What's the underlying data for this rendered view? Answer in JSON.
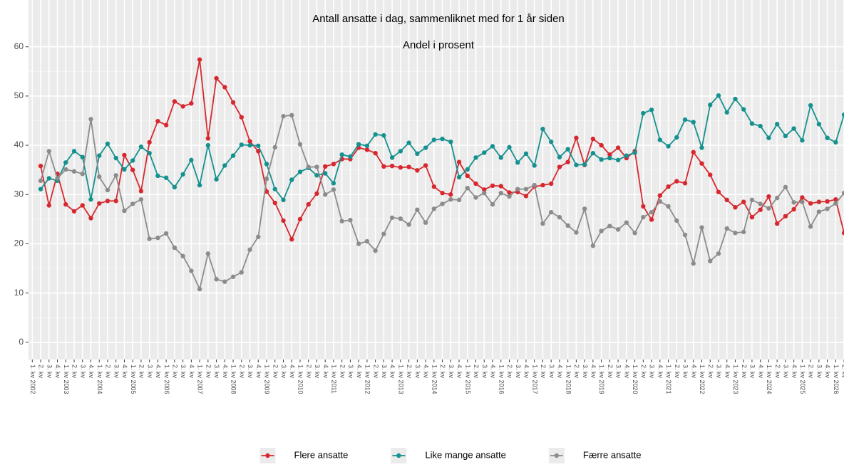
{
  "chart_data": {
    "type": "line",
    "title": "Antall ansatte i dag, sammenliknet med for 1 år siden",
    "subtitle": "Andel i prosent",
    "categories": [
      "1. kv 2002",
      "2. kv",
      "3. kv",
      "4. kv",
      "1. kv 2003",
      "2. kv",
      "3. kv",
      "4. kv",
      "1. kv 2004",
      "2. kv",
      "3. kv",
      "4. kv",
      "1. kv 2005",
      "2. kv",
      "3. kv",
      "4. kv",
      "1. kv 2006",
      "2. kv",
      "3. kv",
      "4. kv",
      "1. kv 2007",
      "2. kv",
      "3. kv",
      "4. kv",
      "1. kv 2008",
      "2. kv",
      "3. kv",
      "4. kv",
      "1. kv 2009",
      "2. kv",
      "3. kv",
      "4. kv",
      "1. kv 2010",
      "2. kv",
      "3. kv",
      "4. kv",
      "1. kv 2011",
      "2. kv",
      "3. kv",
      "4. kv",
      "1. kv 2012",
      "2. kv",
      "3. kv",
      "4. kv",
      "1. kv 2013",
      "2. kv",
      "3. kv",
      "4. kv",
      "1. kv 2014",
      "2. kv",
      "3. kv",
      "4. kv",
      "1. kv 2015",
      "2. kv",
      "3. kv",
      "4. kv",
      "1. kv 2016",
      "2. kv",
      "3. kv",
      "4. kv",
      "1. kv 2017",
      "2. kv",
      "3. kv",
      "4. kv",
      "1. kv 2018",
      "2. kv",
      "3. kv",
      "4. kv",
      "1. kv 2019",
      "2. kv",
      "3. kv",
      "4. kv",
      "1. kv 2020",
      "2. kv",
      "3. kv",
      "4. kv",
      "1. kv 2021",
      "2. kv",
      "3. kv",
      "4. kv",
      "1. kv 2022",
      "2. kv",
      "3. kv",
      "4. kv",
      "1. kv 2023",
      "2. kv",
      "3. kv",
      "4. kv",
      "1. kv 2024",
      "2. kv",
      "3. kv",
      "4. kv",
      "1. kv 2025",
      "2. kv",
      "3. kv",
      "4. kv",
      "1. kv 2026",
      "2. kv"
    ],
    "series": [
      {
        "name": "Flere ansatte",
        "color": "#d7282f",
        "values": [
          null,
          35.8,
          27.8,
          34.2,
          28,
          26.6,
          27.8,
          25.2,
          28.2,
          28.7,
          28.7,
          38,
          35,
          30.7,
          40.6,
          44.9,
          44.1,
          48.9,
          47.9,
          48.5,
          57.4,
          41.4,
          53.6,
          51.8,
          48.7,
          45.7,
          40.8,
          38.8,
          30.6,
          28.3,
          24.7,
          20.9,
          25,
          28,
          30.2,
          35.7,
          36.2,
          37.2,
          37.2,
          39.5,
          39.1,
          38.4,
          35.7,
          35.8,
          35.5,
          35.6,
          34.9,
          35.9,
          31.6,
          30.3,
          30,
          36.6,
          33.8,
          32.2,
          31,
          31.8,
          31.7,
          30.4,
          30.5,
          29.7,
          31.6,
          31.9,
          32.2,
          35.6,
          36.6,
          41.5,
          36,
          41.3,
          40,
          38.1,
          39.5,
          37.4,
          38.8,
          27.6,
          24.9,
          29.8,
          31.6,
          32.7,
          32.3,
          38.6,
          36.3,
          34,
          30.5,
          28.9,
          27.4,
          28.5,
          25.4,
          26.9,
          29.6,
          24.1,
          25.6,
          27,
          29.4,
          28.2,
          28.5,
          28.6,
          29,
          22.2
        ]
      },
      {
        "name": "Like mange ansatte",
        "color": "#15918f",
        "values": [
          null,
          31.1,
          33.3,
          32.8,
          36.5,
          38.8,
          37.6,
          29,
          37.9,
          40.3,
          37.4,
          35.1,
          36.9,
          39.7,
          38.4,
          33.8,
          33.4,
          31.5,
          34.1,
          37,
          31.9,
          40,
          33.1,
          35.9,
          37.9,
          40.1,
          40,
          39.9,
          36.2,
          31.1,
          28.9,
          33,
          34.6,
          35.4,
          33.9,
          34.3,
          32.3,
          38.1,
          37.7,
          40.2,
          39.9,
          42.2,
          42,
          37.5,
          38.8,
          40.5,
          38.3,
          39.5,
          41.1,
          41.3,
          40.7,
          33.5,
          35.1,
          37.5,
          38.5,
          39.8,
          37.5,
          39.6,
          36.5,
          38.3,
          35.9,
          43.3,
          40.7,
          37.6,
          39.2,
          36,
          36.1,
          38.4,
          37.1,
          37.4,
          37,
          37.9,
          38.5,
          46.5,
          47.2,
          41.1,
          39.8,
          41.6,
          45.2,
          44.7,
          39.5,
          48.2,
          50.1,
          46.7,
          49.4,
          47.3,
          44.4,
          43.9,
          41.5,
          44.3,
          41.9,
          43.4,
          41,
          48.1,
          44.3,
          41.5,
          40.6,
          46.2
        ]
      },
      {
        "name": "Færre ansatte",
        "color": "#8c8c8c",
        "values": [
          null,
          32.8,
          38.8,
          33.3,
          35.1,
          34.7,
          34.2,
          45.3,
          33.6,
          30.9,
          33.9,
          26.7,
          28.1,
          29,
          21,
          21.2,
          22.1,
          19.2,
          17.5,
          14.5,
          10.8,
          18,
          12.8,
          12.3,
          13.3,
          14.2,
          18.8,
          21.4,
          33.2,
          39.6,
          45.9,
          46.1,
          40.2,
          35.6,
          35.6,
          30,
          31,
          24.6,
          24.8,
          20,
          20.5,
          18.6,
          22,
          25.3,
          25.1,
          23.9,
          26.9,
          24.3,
          27.1,
          28.1,
          29,
          28.9,
          31.3,
          29.4,
          30.3,
          28,
          30.3,
          29.6,
          31.1,
          31.1,
          31.9,
          24.1,
          26.4,
          25.4,
          23.7,
          22.3,
          27.1,
          19.6,
          22.6,
          23.6,
          22.9,
          24.3,
          22.2,
          25.4,
          26.4,
          28.6,
          27.6,
          24.7,
          21.8,
          16,
          23.3,
          16.5,
          18,
          23.1,
          22.2,
          22.4,
          28.9,
          28.1,
          27.2,
          29.3,
          31.5,
          28.4,
          28.5,
          23.5,
          26.5,
          27.1,
          28.2,
          30.3
        ]
      }
    ],
    "ylim": [
      -3.5,
      69.5
    ],
    "yticks": [
      0,
      10,
      20,
      30,
      40,
      50,
      60
    ],
    "grid": true,
    "legend": "bottom"
  }
}
